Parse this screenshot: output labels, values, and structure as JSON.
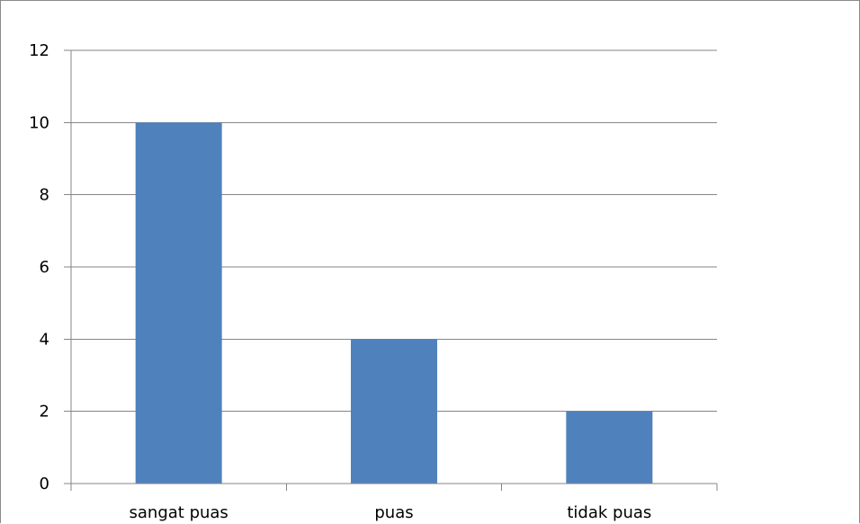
{
  "chart_data": {
    "type": "bar",
    "categories": [
      "sangat puas",
      "puas",
      "tidak puas"
    ],
    "values": [
      10,
      4,
      2
    ],
    "title": "",
    "xlabel": "",
    "ylabel": "",
    "ylim": [
      0,
      12
    ],
    "yticks": [
      "0",
      "2",
      "4",
      "6",
      "8",
      "10",
      "12"
    ],
    "grid": true,
    "legend": "none",
    "colors": {
      "bar": "#4f81bd",
      "gridline": "#868686",
      "axis": "#868686",
      "background": "#ffffff"
    }
  }
}
